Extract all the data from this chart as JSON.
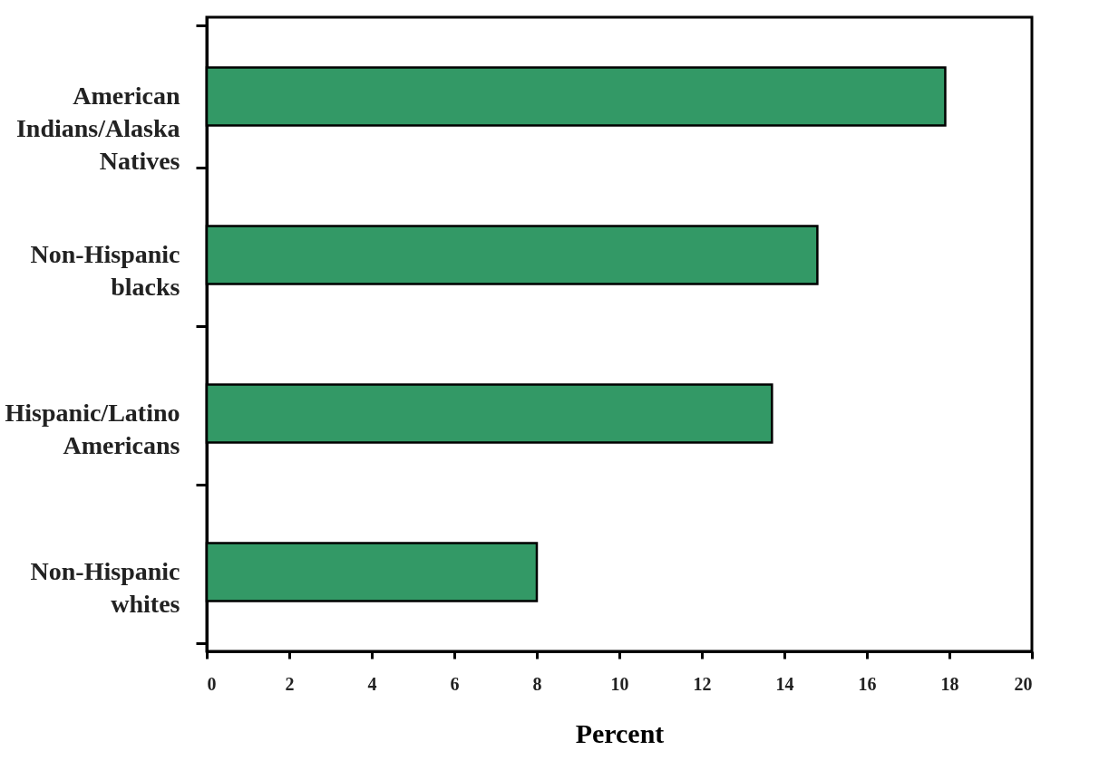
{
  "chart_data": {
    "type": "bar",
    "orientation": "horizontal",
    "xlabel": "Percent",
    "categories": [
      "American\nIndians/Alaska\nNatives",
      "Non-Hispanic\nblacks",
      "Hispanic/Latino\nAmericans",
      "Non-Hispanic\nwhites"
    ],
    "values": [
      17.9,
      14.8,
      13.7,
      8.0
    ],
    "color": "#339966",
    "xlim": [
      0,
      20
    ],
    "xticks": [
      0,
      2,
      4,
      6,
      8,
      10,
      12,
      14,
      16,
      18,
      20
    ],
    "grid": false
  }
}
